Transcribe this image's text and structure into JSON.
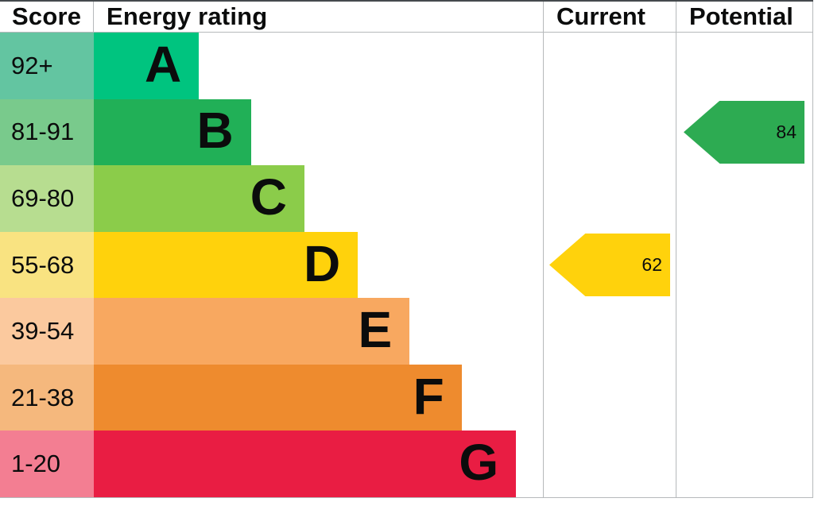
{
  "header": {
    "score": "Score",
    "rating": "Energy rating",
    "current": "Current",
    "potential": "Potential"
  },
  "chart_data": {
    "type": "bar",
    "title": "EPC energy efficiency rating chart",
    "bands": [
      {
        "letter": "A",
        "score_range": "92+",
        "bar_color": "#00c47f",
        "score_cell_color": "#63c5a1",
        "bar_width_frac": 0.234
      },
      {
        "letter": "B",
        "score_range": "81-91",
        "bar_color": "#21b057",
        "score_cell_color": "#79ca8c",
        "bar_width_frac": 0.35
      },
      {
        "letter": "C",
        "score_range": "69-80",
        "bar_color": "#8bcc4a",
        "score_cell_color": "#b7dd90",
        "bar_width_frac": 0.469
      },
      {
        "letter": "D",
        "score_range": "55-68",
        "bar_color": "#ffd20c",
        "score_cell_color": "#f9e381",
        "bar_width_frac": 0.588
      },
      {
        "letter": "E",
        "score_range": "39-54",
        "bar_color": "#f8a860",
        "score_cell_color": "#fbc99e",
        "bar_width_frac": 0.703
      },
      {
        "letter": "F",
        "score_range": "21-38",
        "bar_color": "#ee8b2e",
        "score_cell_color": "#f5b87d",
        "bar_width_frac": 0.819
      },
      {
        "letter": "G",
        "score_range": "1-20",
        "bar_color": "#e91d43",
        "score_cell_color": "#f37e92",
        "bar_width_frac": 0.94
      }
    ],
    "current": {
      "value": "62",
      "band": "D",
      "row_index": 3,
      "arrow_color": "#ffd20c"
    },
    "potential": {
      "value": "84",
      "band": "B",
      "row_index": 1,
      "arrow_color": "#2dab52"
    },
    "legend_position": "none",
    "grid": false,
    "text_color": "#0b0c0c",
    "border_color": "#b6b9bb"
  }
}
